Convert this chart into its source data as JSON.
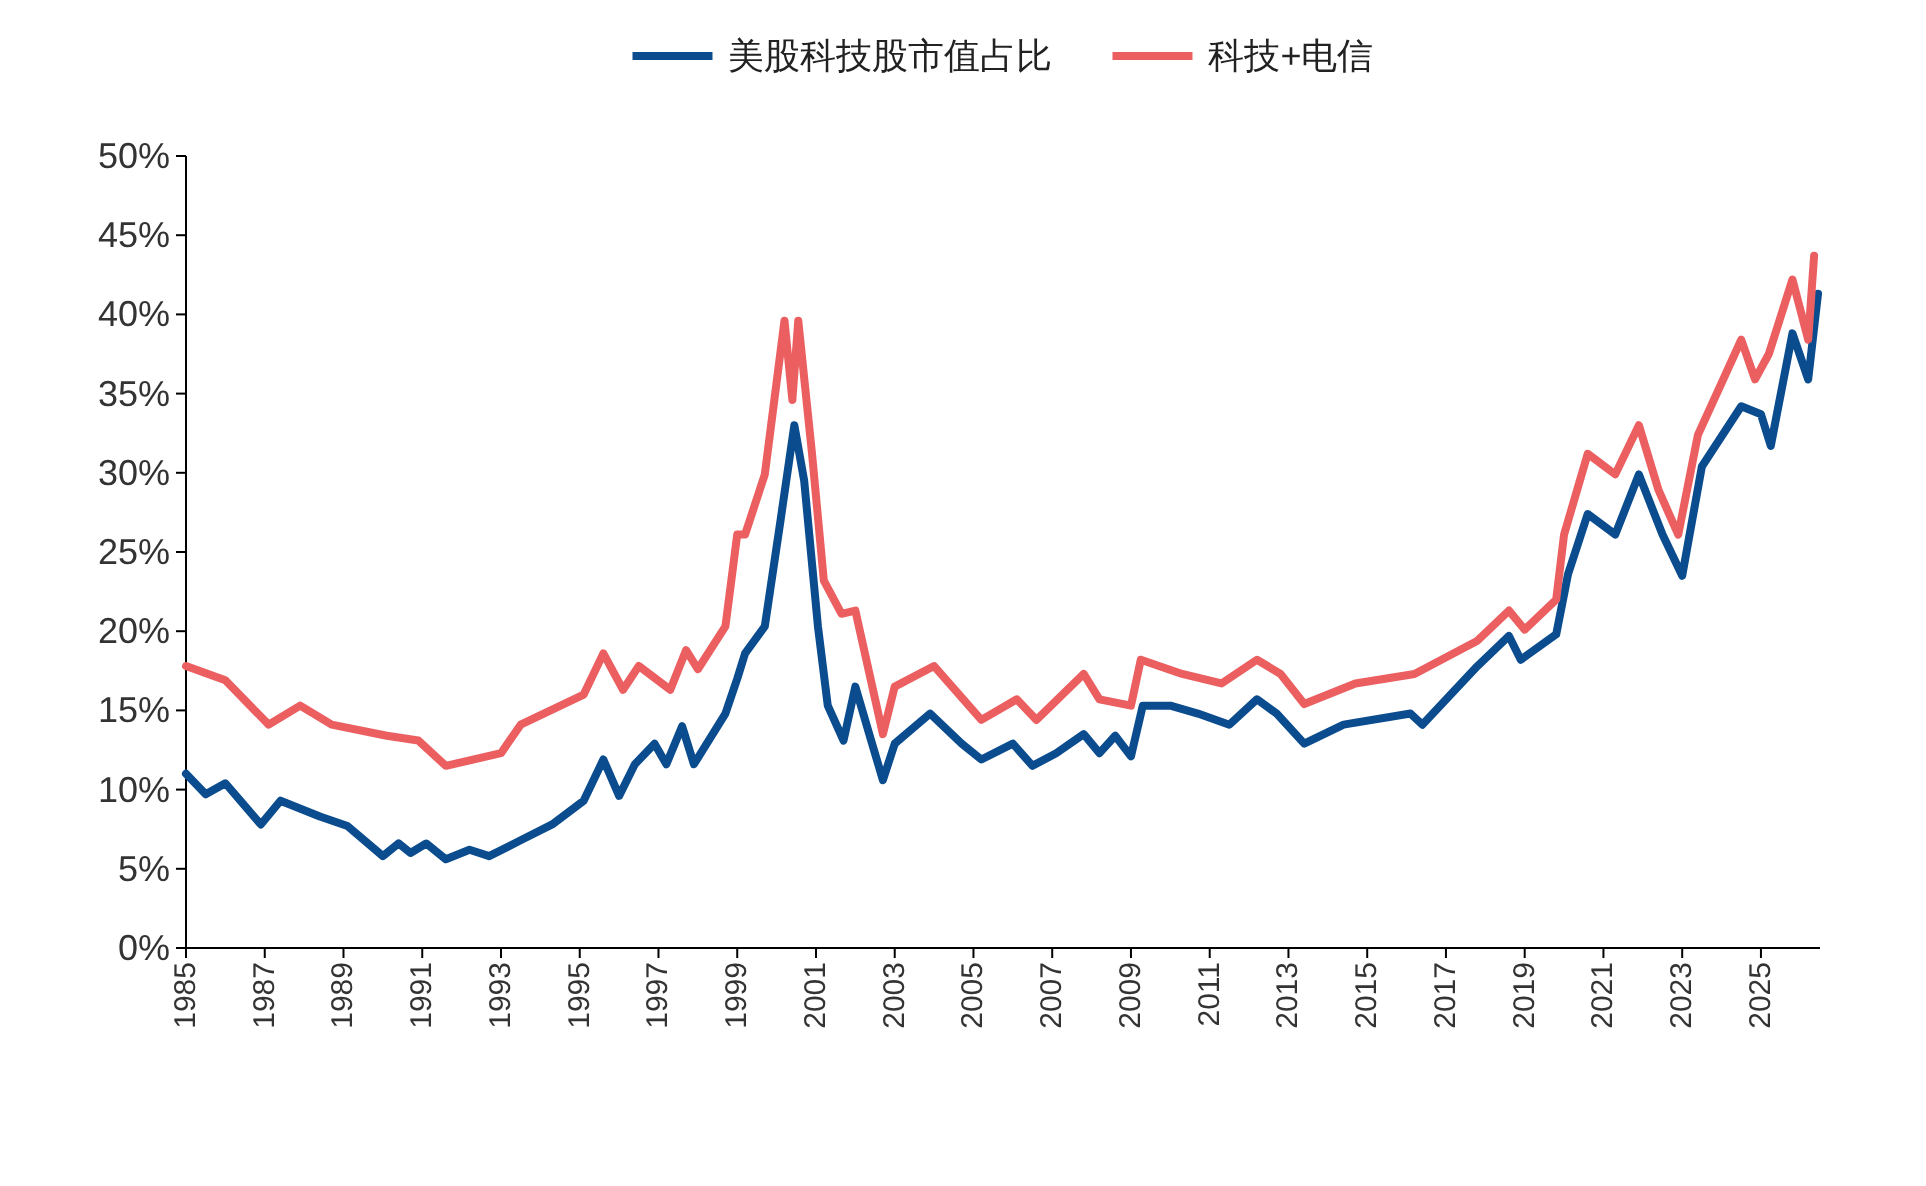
{
  "chart_data": {
    "type": "line",
    "xlim": [
      1985,
      2026.5
    ],
    "xticks": [
      1985,
      1987,
      1989,
      1991,
      1993,
      1995,
      1997,
      1999,
      2001,
      2003,
      2005,
      2007,
      2009,
      2011,
      2013,
      2015,
      2017,
      2019,
      2021,
      2023,
      2025
    ],
    "ylim": [
      0,
      50
    ],
    "yticks": [
      {
        "value": 0,
        "label": "0%"
      },
      {
        "value": 5,
        "label": "5%"
      },
      {
        "value": 10,
        "label": "10%"
      },
      {
        "value": 15,
        "label": "15%"
      },
      {
        "value": 20,
        "label": "20%"
      },
      {
        "value": 25,
        "label": "25%"
      },
      {
        "value": 30,
        "label": "30%"
      },
      {
        "value": 35,
        "label": "35%"
      },
      {
        "value": 40,
        "label": "40%"
      },
      {
        "value": 45,
        "label": "45%"
      },
      {
        "value": 50,
        "label": "50%"
      }
    ],
    "grid": false,
    "legend": "top",
    "series": [
      {
        "name": "美股科技股市值占比",
        "color": "#0b4c8f",
        "x": [
          1985,
          1985.5,
          1986,
          1986.9,
          1987.4,
          1988.4,
          1989.1,
          1990,
          1990.4,
          1990.7,
          1991.1,
          1991.6,
          1992.2,
          1992.7,
          1993.5,
          1994.3,
          1995.1,
          1995.6,
          1996,
          1996.4,
          1996.9,
          1997.2,
          1997.6,
          1997.9,
          1998.7,
          1999,
          1999.2,
          1999.7,
          2000.1,
          2000.45,
          2000.7,
          2001.05,
          2001.3,
          2001.7,
          2002,
          2002.4,
          2002.7,
          2003,
          2003.9,
          2004.7,
          2005.2,
          2006,
          2006.5,
          2007.1,
          2007.8,
          2008.2,
          2008.6,
          2009,
          2009.3,
          2010,
          2010.7,
          2011.5,
          2012.2,
          2012.7,
          2013.4,
          2014.4,
          2016.1,
          2016.4,
          2017.8,
          2018.6,
          2018.9,
          2019.8,
          2020.1,
          2020.6,
          2021.3,
          2021.9,
          2022.5,
          2023,
          2023.5,
          2024.5,
          2025,
          2025.25,
          2025.8,
          2026.2,
          2026.45
        ],
        "values": [
          11.0,
          9.7,
          10.4,
          7.8,
          9.3,
          8.3,
          7.7,
          5.8,
          6.6,
          6.0,
          6.6,
          5.6,
          6.2,
          5.8,
          6.8,
          7.8,
          9.3,
          11.9,
          9.6,
          11.6,
          12.9,
          11.6,
          14.0,
          11.6,
          14.8,
          17.0,
          18.6,
          20.3,
          27.0,
          33.0,
          29.5,
          20.3,
          15.3,
          13.1,
          16.5,
          13.1,
          10.6,
          12.9,
          14.8,
          12.9,
          11.9,
          12.9,
          11.5,
          12.3,
          13.5,
          12.3,
          13.4,
          12.1,
          15.3,
          15.3,
          14.8,
          14.1,
          15.7,
          14.8,
          12.9,
          14.1,
          14.8,
          14.1,
          17.8,
          19.7,
          18.2,
          19.8,
          23.6,
          27.4,
          26.1,
          29.9,
          26.1,
          23.5,
          30.4,
          34.2,
          33.7,
          31.7,
          38.8,
          35.9,
          41.3
        ]
      },
      {
        "name": "科技+电信",
        "color": "#ec5f61",
        "x": [
          1985,
          1986,
          1987.1,
          1987.9,
          1988.7,
          1990.1,
          1990.9,
          1991.6,
          1993,
          1993.5,
          1995.1,
          1995.6,
          1996.1,
          1996.5,
          1997.3,
          1997.7,
          1998,
          1998.7,
          1999,
          1999.2,
          1999.7,
          2000.2,
          2000.4,
          2000.55,
          2000.9,
          2001.2,
          2001.65,
          2002,
          2002.7,
          2003,
          2004,
          2005.2,
          2006.1,
          2006.6,
          2007.8,
          2008.2,
          2009,
          2009.25,
          2010.3,
          2011.3,
          2012.2,
          2012.8,
          2013.4,
          2014.7,
          2016.2,
          2017.8,
          2018.6,
          2019,
          2019.8,
          2020,
          2020.6,
          2021.3,
          2021.9,
          2022.4,
          2022.9,
          2023.4,
          2024.5,
          2024.85,
          2025.2,
          2025.8,
          2026.2,
          2026.35
        ],
        "values": [
          17.8,
          16.9,
          14.1,
          15.3,
          14.1,
          13.4,
          13.1,
          11.5,
          12.3,
          14.1,
          16.0,
          18.6,
          16.3,
          17.8,
          16.3,
          18.8,
          17.6,
          20.3,
          26.1,
          26.1,
          29.9,
          39.6,
          34.6,
          39.6,
          31.2,
          23.2,
          21.1,
          21.3,
          13.5,
          16.5,
          17.8,
          14.4,
          15.7,
          14.4,
          17.3,
          15.7,
          15.3,
          18.2,
          17.3,
          16.7,
          18.2,
          17.3,
          15.4,
          16.7,
          17.3,
          19.4,
          21.3,
          20.1,
          22.0,
          26.1,
          31.2,
          29.9,
          33.0,
          28.9,
          26.1,
          32.4,
          38.4,
          35.9,
          37.5,
          42.2,
          38.4,
          43.7
        ]
      }
    ]
  }
}
